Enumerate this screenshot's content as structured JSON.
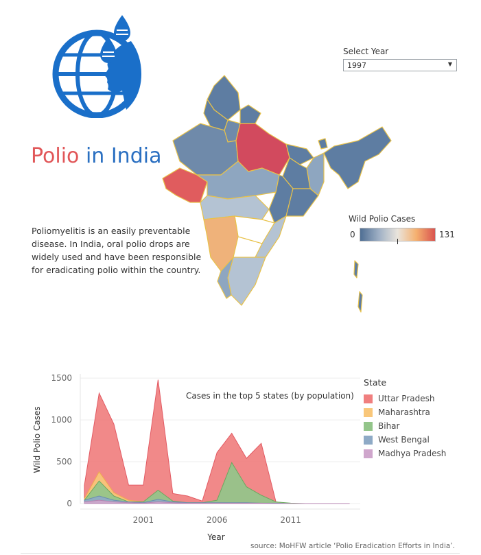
{
  "header": {
    "title_word1": "Polio",
    "title_word2": "in India",
    "logo_icon": "globe-droplets-face-icon"
  },
  "description": "Poliomyelitis is an easily preventable disease. In India, oral polio drops are widely used and have been responsible for eradicating polio within the country.",
  "year_filter": {
    "label": "Select Year",
    "value": "1997"
  },
  "map_legend": {
    "title": "Wild Polio Cases",
    "min": "0",
    "max": "131"
  },
  "colors": {
    "uttar_pradesh": "#f07f7f",
    "maharashtra": "#f9c77a",
    "bihar": "#93c58a",
    "west_bengal": "#8eaac6",
    "madhya_pradesh": "#cfa6cc"
  },
  "chart_data": {
    "type": "area",
    "annotation": "Cases in the top 5 states (by population)",
    "xlabel": "Year",
    "ylabel": "Wild Polio Cases",
    "x": [
      1997,
      1998,
      1999,
      2000,
      2001,
      2002,
      2003,
      2004,
      2005,
      2006,
      2007,
      2008,
      2009,
      2010,
      2011,
      2012,
      2013,
      2014,
      2015
    ],
    "x_ticks": [
      "2001",
      "2006",
      "2011"
    ],
    "y_ticks": [
      "0",
      "500",
      "1000",
      "1500"
    ],
    "ylim": [
      0,
      1550
    ],
    "series": [
      {
        "name": "Uttar Pradesh",
        "values": [
          220,
          1320,
          950,
          220,
          220,
          1480,
          120,
          90,
          30,
          610,
          840,
          540,
          720,
          20,
          0,
          0,
          0,
          0,
          0
        ]
      },
      {
        "name": "Maharashtra",
        "values": [
          60,
          380,
          130,
          40,
          20,
          20,
          10,
          10,
          5,
          5,
          20,
          10,
          20,
          5,
          0,
          0,
          0,
          0,
          0
        ]
      },
      {
        "name": "Bihar",
        "values": [
          40,
          270,
          90,
          20,
          20,
          160,
          30,
          10,
          10,
          40,
          490,
          200,
          100,
          20,
          5,
          0,
          0,
          0,
          0
        ]
      },
      {
        "name": "West Bengal",
        "values": [
          40,
          90,
          40,
          20,
          10,
          50,
          20,
          10,
          10,
          10,
          10,
          10,
          5,
          5,
          0,
          0,
          0,
          0,
          0
        ]
      },
      {
        "name": "Madhya Pradesh",
        "values": [
          20,
          40,
          20,
          10,
          5,
          20,
          10,
          5,
          5,
          5,
          5,
          5,
          5,
          0,
          0,
          0,
          0,
          0,
          0
        ]
      }
    ]
  },
  "source": "source: MoHFW article ‘Polio Eradication Efforts in India’."
}
